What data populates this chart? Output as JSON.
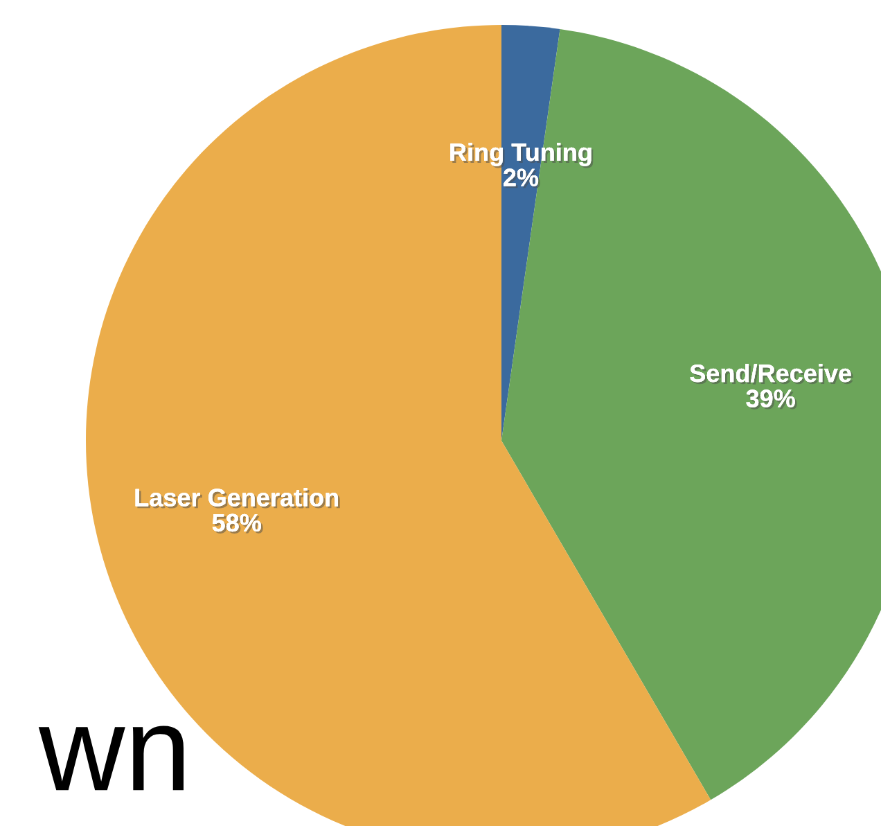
{
  "chart_data": {
    "type": "pie",
    "categories": [
      "Ring Tuning",
      "Send/Receive",
      "Laser Generation"
    ],
    "values": [
      2.25,
      39.35,
      58.4
    ],
    "value_labels": [
      "2%",
      "39%",
      "58%"
    ],
    "colors": [
      "#3b6a9e",
      "#6ca55a",
      "#ebad4b"
    ],
    "annotations": [
      "wn"
    ]
  }
}
